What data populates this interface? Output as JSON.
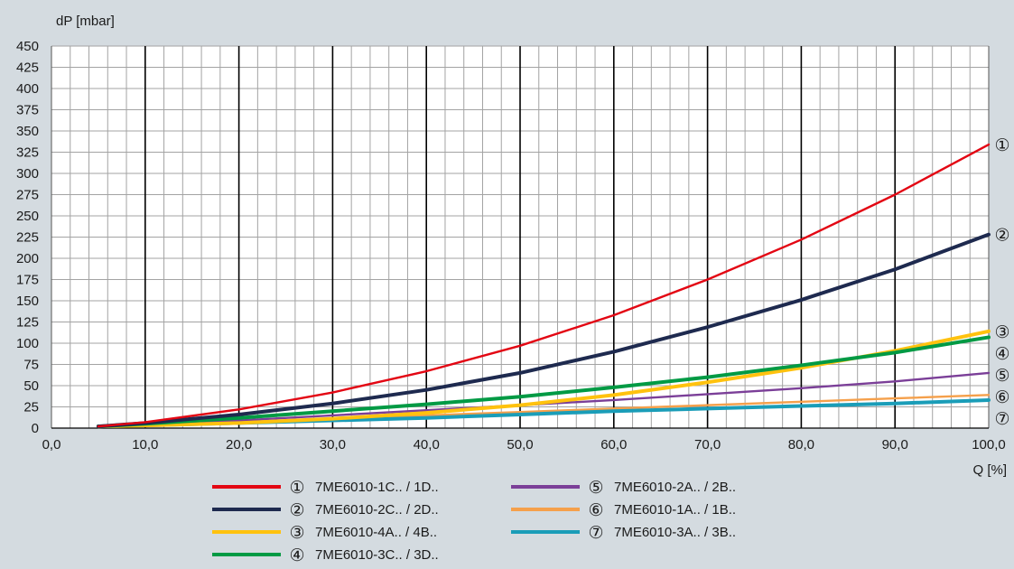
{
  "chart_data": {
    "type": "line",
    "title": "",
    "xlabel": "Q [%]",
    "ylabel": "dP [mbar]",
    "xlim": [
      0,
      100
    ],
    "ylim": [
      0,
      450
    ],
    "x_major_ticks": [
      "0,0",
      "10,0",
      "20,0",
      "30,0",
      "40,0",
      "50,0",
      "60,0",
      "70,0",
      "80,0",
      "90,0",
      "100,0"
    ],
    "x_major_values": [
      0,
      10,
      20,
      30,
      40,
      50,
      60,
      70,
      80,
      90,
      100
    ],
    "x_minor_step": 2,
    "y_ticks": [
      0,
      25,
      50,
      75,
      100,
      125,
      150,
      175,
      200,
      225,
      250,
      275,
      300,
      325,
      350,
      375,
      400,
      425,
      450
    ],
    "grid": true,
    "legend_position": "bottom",
    "x": [
      5,
      10,
      20,
      30,
      40,
      50,
      60,
      70,
      80,
      90,
      100
    ],
    "series": [
      {
        "marker": "①",
        "name": "7ME6010-1C.. / 1D..",
        "color": "#e30613",
        "values": [
          2,
          7,
          22,
          42,
          67,
          97,
          133,
          175,
          222,
          275,
          334
        ]
      },
      {
        "marker": "②",
        "name": "7ME6010-2C.. / 2D..",
        "color": "#1e2a4f",
        "values": [
          2,
          6,
          16,
          29,
          45,
          65,
          90,
          119,
          151,
          187,
          228
        ]
      },
      {
        "marker": "③",
        "name": "7ME6010-4A.. / 4B..",
        "color": "#ffc20e",
        "values": [
          2,
          3,
          6,
          11,
          18,
          27,
          39,
          54,
          71,
          91,
          114
        ]
      },
      {
        "marker": "④",
        "name": "7ME6010-3C.. / 3D..",
        "color": "#009a44",
        "values": [
          2,
          5,
          12,
          20,
          28,
          37,
          48,
          60,
          74,
          89,
          107
        ]
      },
      {
        "marker": "⑤",
        "name": "7ME6010-2A.. / 2B..",
        "color": "#7b3f98",
        "values": [
          2,
          4,
          9,
          15,
          21,
          27,
          33,
          40,
          47,
          55,
          65
        ]
      },
      {
        "marker": "⑥",
        "name": "7ME6010-1A.. / 1B..",
        "color": "#f5a04b",
        "values": [
          2,
          3,
          7,
          11,
          15,
          19,
          23,
          27,
          31,
          35,
          39
        ]
      },
      {
        "marker": "⑦",
        "name": "7ME6010-3A.. / 3B..",
        "color": "#1a9db8",
        "values": [
          2,
          3,
          6,
          9,
          12,
          16,
          20,
          23,
          26,
          29,
          33
        ]
      }
    ]
  },
  "colors": {
    "background": "#d4dbe0",
    "plot_area": "#ffffff",
    "minor_grid": "#a3a3a3",
    "major_grid": "#000000"
  }
}
